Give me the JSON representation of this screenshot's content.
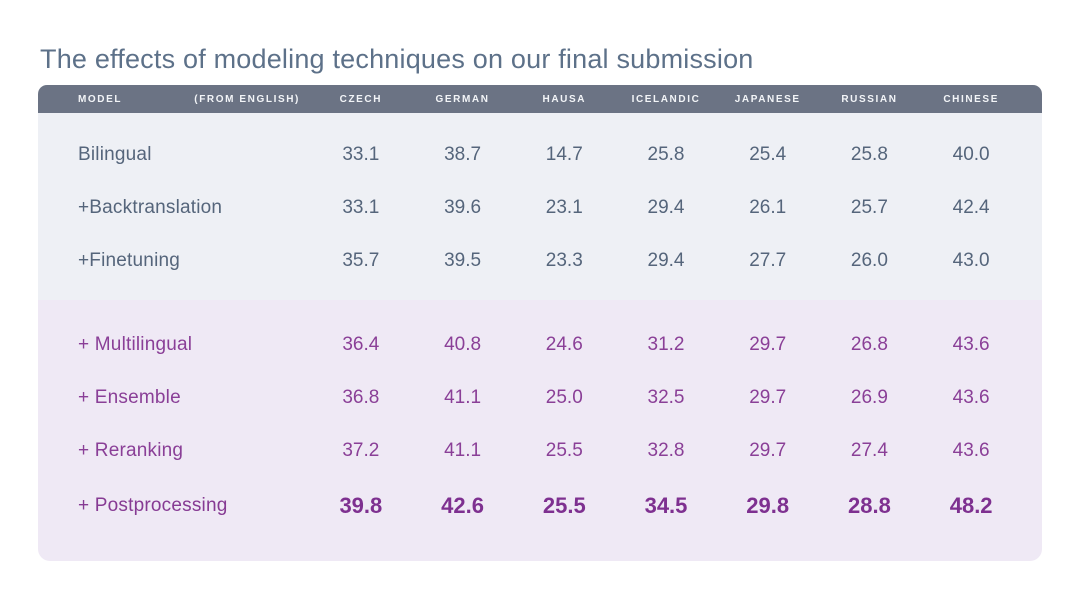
{
  "title": "The effects of modeling techniques on our final submission",
  "colors": {
    "title_text": "#5d7189",
    "header_bg": "#6b7384",
    "header_text": "#f3f5f8",
    "section1_bg": "#eef0f5",
    "section1_text": "#55657b",
    "section2_bg": "#efe9f5",
    "section2_text": "#8a3f97",
    "emphasis_text": "#7e3090"
  },
  "chart_data": {
    "type": "table",
    "title": "The effects of modeling techniques on our final submission",
    "columns": [
      "MODEL",
      "(FROM ENGLISH)",
      "CZECH",
      "GERMAN",
      "HAUSA",
      "ICELANDIC",
      "JAPANESE",
      "RUSSIAN",
      "CHINESE"
    ],
    "sections": [
      {
        "name": "bilingual-stage",
        "rows": [
          {
            "label": "Bilingual",
            "values": [
              "33.1",
              "38.7",
              "14.7",
              "25.8",
              "25.4",
              "25.8",
              "40.0"
            ]
          },
          {
            "label": "+Backtranslation",
            "values": [
              "33.1",
              "39.6",
              "23.1",
              "29.4",
              "26.1",
              "25.7",
              "42.4"
            ]
          },
          {
            "label": "+Finetuning",
            "values": [
              "35.7",
              "39.5",
              "23.3",
              "29.4",
              "27.7",
              "26.0",
              "43.0"
            ]
          }
        ]
      },
      {
        "name": "multilingual-stage",
        "rows": [
          {
            "label": "+ Multilingual",
            "values": [
              "36.4",
              "40.8",
              "24.6",
              "31.2",
              "29.7",
              "26.8",
              "43.6"
            ]
          },
          {
            "label": "+ Ensemble",
            "values": [
              "36.8",
              "41.1",
              "25.0",
              "32.5",
              "29.7",
              "26.9",
              "43.6"
            ]
          },
          {
            "label": "+ Reranking",
            "values": [
              "37.2",
              "41.1",
              "25.5",
              "32.8",
              "29.7",
              "27.4",
              "43.6"
            ]
          },
          {
            "label": "+ Postprocessing",
            "values": [
              "39.8",
              "42.6",
              "25.5",
              "34.5",
              "29.8",
              "28.8",
              "48.2"
            ],
            "emphasis": true
          }
        ]
      }
    ]
  }
}
